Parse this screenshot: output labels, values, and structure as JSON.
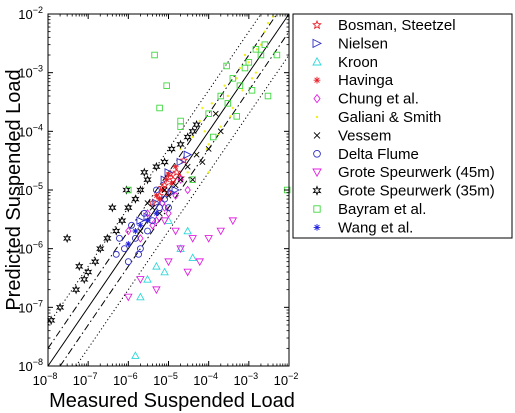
{
  "chart_data": {
    "type": "scatter",
    "title": "",
    "xlabel": "Measured Suspended Load",
    "ylabel": "Predicted Suspended Load",
    "x_scale": "log",
    "y_scale": "log",
    "xlim": [
      1e-08,
      0.01
    ],
    "ylim": [
      1e-08,
      0.01
    ],
    "x_ticks": [
      {
        "value": 1e-08,
        "base": "10",
        "exp": "−8"
      },
      {
        "value": 1e-07,
        "base": "10",
        "exp": "−7"
      },
      {
        "value": 1e-06,
        "base": "10",
        "exp": "−6"
      },
      {
        "value": 1e-05,
        "base": "10",
        "exp": "−5"
      },
      {
        "value": 0.0001,
        "base": "10",
        "exp": "−4"
      },
      {
        "value": 0.001,
        "base": "10",
        "exp": "−3"
      },
      {
        "value": 0.01,
        "base": "10",
        "exp": "−2"
      }
    ],
    "y_ticks": [
      {
        "value": 1e-08,
        "base": "10",
        "exp": "−8"
      },
      {
        "value": 1e-07,
        "base": "10",
        "exp": "−7"
      },
      {
        "value": 1e-06,
        "base": "10",
        "exp": "−6"
      },
      {
        "value": 1e-05,
        "base": "10",
        "exp": "−5"
      },
      {
        "value": 0.0001,
        "base": "10",
        "exp": "−4"
      },
      {
        "value": 0.001,
        "base": "10",
        "exp": "−3"
      },
      {
        "value": 0.01,
        "base": "10",
        "exp": "−2"
      }
    ],
    "grid": false,
    "legend_position": "outside-right",
    "reference_lines": [
      {
        "factor": 1,
        "style": "solid"
      },
      {
        "factor": 2,
        "style": "dashdot"
      },
      {
        "factor": 0.5,
        "style": "dashdot"
      },
      {
        "factor": 5,
        "style": "dotted"
      },
      {
        "factor": 0.2,
        "style": "dotted"
      }
    ],
    "series": [
      {
        "name": "Bosman, Steetzel",
        "marker": "star",
        "color": "#e8202a",
        "points": [
          [
            4e-06,
            6e-06
          ],
          [
            6e-06,
            8e-06
          ],
          [
            8e-06,
            1.2e-05
          ],
          [
            1e-05,
            9e-06
          ],
          [
            1.3e-05,
            1.5e-05
          ],
          [
            1.6e-05,
            2e-05
          ],
          [
            2e-05,
            1.6e-05
          ],
          [
            7e-06,
            1.1e-05
          ],
          [
            1.1e-05,
            1.9e-05
          ],
          [
            2.4e-05,
            3.2e-05
          ]
        ]
      },
      {
        "name": "Nielsen",
        "marker": "triangle-right",
        "color": "#3030c0",
        "points": [
          [
            2e-06,
            3e-06
          ],
          [
            3e-06,
            3.5e-06
          ],
          [
            5e-06,
            6e-06
          ],
          [
            8e-06,
            1.5e-05
          ],
          [
            1e-05,
            2e-05
          ],
          [
            1.5e-05,
            1e-05
          ],
          [
            2e-05,
            3e-05
          ],
          [
            3e-05,
            4e-05
          ],
          [
            1.2e-05,
            9e-06
          ]
        ]
      },
      {
        "name": "Kroon",
        "marker": "triangle-up",
        "color": "#30d8d8",
        "points": [
          [
            1.5e-06,
            1.5e-08
          ],
          [
            2e-06,
            1.5e-07
          ],
          [
            3e-06,
            3e-07
          ],
          [
            5e-06,
            5e-07
          ],
          [
            1e-05,
            3e-06
          ],
          [
            2e-05,
            1e-06
          ],
          [
            4e-05,
            7e-07
          ],
          [
            8e-06,
            4e-07
          ],
          [
            3e-05,
            2e-06
          ]
        ]
      },
      {
        "name": "Havinga",
        "marker": "asterisk",
        "color": "#e8202a",
        "points": [
          [
            5e-06,
            8e-06
          ],
          [
            7e-06,
            1e-05
          ],
          [
            9e-06,
            1.5e-05
          ],
          [
            1.2e-05,
            1.3e-05
          ],
          [
            1.5e-05,
            2.5e-05
          ],
          [
            6e-06,
            7e-06
          ],
          [
            1e-05,
            1.8e-05
          ]
        ]
      },
      {
        "name": "Chung et al.",
        "marker": "diamond",
        "color": "#e020e0",
        "points": [
          [
            1e-06,
            2e-06
          ],
          [
            2e-06,
            1.5e-06
          ],
          [
            3e-06,
            4e-06
          ],
          [
            5e-06,
            3e-06
          ],
          [
            7e-06,
            6e-06
          ],
          [
            1e-05,
            4e-06
          ],
          [
            1.5e-05,
            8e-06
          ],
          [
            2e-05,
            1.5e-05
          ],
          [
            3e-05,
            1e-05
          ],
          [
            4e-06,
            2.5e-06
          ],
          [
            8e-06,
            5e-06
          ]
        ]
      },
      {
        "name": "Galiani & Smith",
        "marker": "point",
        "color": "#f0f020",
        "points": [
          [
            5e-05,
            4e-05
          ],
          [
            8e-05,
            0.0001
          ],
          [
            0.0001,
            6e-05
          ],
          [
            0.00015,
            0.0002
          ],
          [
            0.0002,
            0.00012
          ],
          [
            0.0003,
            0.0004
          ],
          [
            0.0004,
            0.00025
          ],
          [
            0.0005,
            0.0008
          ],
          [
            0.0007,
            0.0005
          ],
          [
            0.001,
            0.0015
          ],
          [
            0.0015,
            0.001
          ],
          [
            0.002,
            0.003
          ],
          [
            0.0025,
            0.005
          ],
          [
            0.003,
            0.007
          ],
          [
            6e-05,
            0.00015
          ],
          [
            0.00012,
            0.0003
          ],
          [
            0.00025,
            0.0006
          ],
          [
            0.0006,
            0.0012
          ],
          [
            3e-05,
            2e-05
          ],
          [
            4e-05,
            8e-05
          ],
          [
            9e-05,
            5e-05
          ],
          [
            0.00018,
            9e-05
          ],
          [
            0.00035,
            0.00018
          ],
          [
            0.0008,
            0.002
          ],
          [
            0.0012,
            0.0008
          ],
          [
            2e-05,
            5e-05
          ],
          [
            7e-05,
            0.00025
          ],
          [
            0.0016,
            0.0025
          ],
          [
            0.004,
            0.009
          ],
          [
            0.0001,
            2e-05
          ]
        ]
      },
      {
        "name": "Vessem",
        "marker": "x",
        "color": "#000000",
        "points": [
          [
            2e-06,
            2e-06
          ],
          [
            4e-06,
            5e-06
          ],
          [
            6e-06,
            4e-06
          ],
          [
            1e-05,
            8e-06
          ],
          [
            1.5e-05,
            1.2e-05
          ],
          [
            2e-05,
            1.5e-05
          ],
          [
            3e-05,
            2.5e-05
          ],
          [
            5e-05,
            4e-05
          ],
          [
            7e-05,
            3e-05
          ],
          [
            0.0001,
            5e-05
          ],
          [
            3e-06,
            6e-06
          ],
          [
            8e-06,
            1e-05
          ],
          [
            4e-05,
            1.5e-05
          ],
          [
            0.0002,
            0.0001
          ],
          [
            0.00015,
            0.0002
          ]
        ]
      },
      {
        "name": "Delta Flume",
        "marker": "circle",
        "color": "#3030c0",
        "points": [
          [
            5e-07,
            8e-07
          ],
          [
            8e-07,
            1e-06
          ],
          [
            1e-06,
            6e-07
          ],
          [
            1.5e-06,
            1.5e-06
          ],
          [
            2e-06,
            1e-06
          ],
          [
            3e-06,
            2e-06
          ],
          [
            4e-06,
            3e-06
          ],
          [
            6e-06,
            5e-06
          ],
          [
            8e-06,
            7e-06
          ],
          [
            1e-05,
            5e-06
          ],
          [
            6e-07,
            1.5e-06
          ],
          [
            1.2e-06,
            2.5e-06
          ],
          [
            2.5e-06,
            4e-06
          ],
          [
            5e-06,
            1e-05
          ],
          [
            1.8e-06,
            8e-07
          ]
        ]
      },
      {
        "name": "Grote Speurwerk (45m)",
        "marker": "triangle-down",
        "color": "#e020e0",
        "points": [
          [
            1e-06,
            1.5e-07
          ],
          [
            2e-06,
            3e-07
          ],
          [
            5e-06,
            2e-07
          ],
          [
            1e-05,
            6e-07
          ],
          [
            3e-05,
            4e-07
          ],
          [
            6e-05,
            6e-07
          ],
          [
            0.0001,
            1.5e-06
          ],
          [
            0.0002,
            2e-06
          ],
          [
            0.0004,
            3e-06
          ],
          [
            4e-05,
            1.5e-06
          ],
          [
            2e-05,
            1e-06
          ],
          [
            8e-06,
            3e-06
          ],
          [
            1.5e-05,
            2e-06
          ]
        ]
      },
      {
        "name": "Grote Speurwerk (35m)",
        "marker": "hexstar",
        "color": "#000000",
        "points": [
          [
            1.2e-08,
            6e-08
          ],
          [
            2e-08,
            1e-07
          ],
          [
            3e-08,
            1.5e-06
          ],
          [
            5e-08,
            2e-07
          ],
          [
            8e-08,
            3e-07
          ],
          [
            1e-07,
            4e-07
          ],
          [
            1.5e-07,
            6e-07
          ],
          [
            2e-07,
            1e-06
          ],
          [
            3e-07,
            1.5e-06
          ],
          [
            5e-07,
            2e-06
          ],
          [
            7e-07,
            3e-06
          ],
          [
            1e-06,
            5e-06
          ],
          [
            1.5e-06,
            7e-06
          ],
          [
            2e-06,
            1e-05
          ],
          [
            3e-06,
            1.5e-05
          ],
          [
            5e-06,
            2.5e-05
          ],
          [
            8e-06,
            3e-05
          ],
          [
            1.2e-05,
            5e-05
          ],
          [
            2e-05,
            6e-05
          ],
          [
            3e-05,
            8e-05
          ],
          [
            5e-05,
            0.00013
          ],
          [
            6e-08,
            5e-07
          ],
          [
            4e-07,
            5e-06
          ],
          [
            9e-07,
            1e-05
          ],
          [
            2.5e-06,
            2e-05
          ],
          [
            4e-05,
            0.0001
          ]
        ]
      },
      {
        "name": "Bayram et al.",
        "marker": "square",
        "color": "#40d840",
        "points": [
          [
            1e-06,
            1e-05
          ],
          [
            2e-05,
            0.00015
          ],
          [
            0.0001,
            0.0002
          ],
          [
            0.0002,
            0.0004
          ],
          [
            0.0003,
            0.0003
          ],
          [
            0.0004,
            0.0008
          ],
          [
            0.0006,
            0.0006
          ],
          [
            0.0008,
            0.0012
          ],
          [
            0.001,
            0.0015
          ],
          [
            0.0015,
            0.0025
          ],
          [
            0.002,
            0.002
          ],
          [
            0.0025,
            0.003
          ],
          [
            4.5e-06,
            0.002
          ],
          [
            9e-06,
            0.0006
          ],
          [
            2e-05,
            0.00012
          ],
          [
            4e-05,
            1.5e-05
          ],
          [
            0.00013,
            8e-05
          ],
          [
            6e-06,
            0.00025
          ],
          [
            0.009,
            1e-05
          ],
          [
            0.003,
            0.0004
          ],
          [
            0.005,
            0.002
          ],
          [
            0.0005,
            0.00018
          ],
          [
            0.00028,
            0.0013
          ],
          [
            0.0012,
            0.0005
          ]
        ]
      },
      {
        "name": "Wang et al.",
        "marker": "asterisk",
        "color": "#2020e0",
        "points": [
          [
            1e-06,
            1.2e-06
          ],
          [
            2e-06,
            2.5e-06
          ],
          [
            3e-06,
            3e-06
          ],
          [
            5e-06,
            4e-06
          ],
          [
            1.5e-06,
            2e-06
          ]
        ]
      }
    ]
  }
}
